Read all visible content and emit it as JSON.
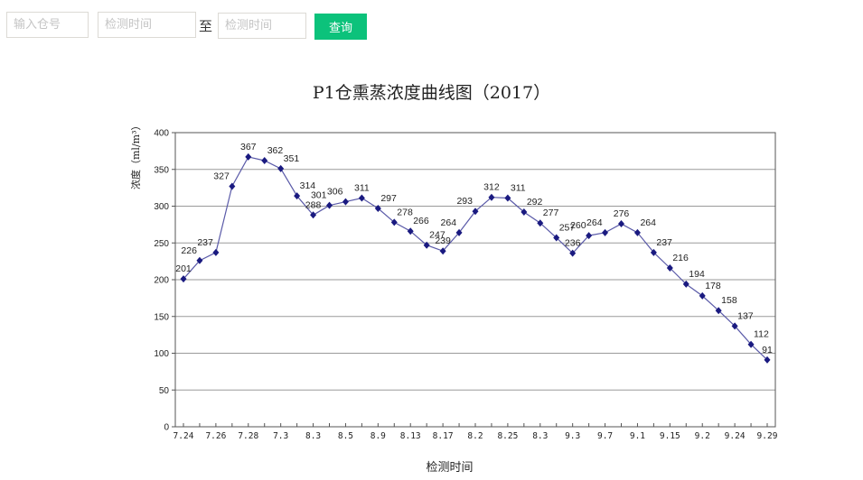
{
  "filter": {
    "warehouse_placeholder": "输入仓号",
    "start_placeholder": "检测时间",
    "separator": "至",
    "end_placeholder": "检测时间",
    "query_label": "查询",
    "accent_color": "#0cc27b"
  },
  "chart_data": {
    "type": "line",
    "title": "P1仓熏蒸浓度曲线图（2017）",
    "xlabel": "检测时间",
    "ylabel": "浓度（ml/m³）",
    "ylim": [
      0,
      400
    ],
    "yticks": [
      0,
      50,
      100,
      150,
      200,
      250,
      300,
      350,
      400
    ],
    "grid": true,
    "legend": false,
    "xtick_labels": [
      "7.24",
      "7.26",
      "7.28",
      "7.3",
      "8.3",
      "8.5",
      "8.9",
      "8.13",
      "8.17",
      "8.2",
      "8.25",
      "8.3",
      "9.3",
      "9.7",
      "9.1",
      "9.15",
      "9.2",
      "9.24",
      "9.29"
    ],
    "series": [
      {
        "name": "浓度",
        "color": "#1a1a80",
        "line_color": "#5a5aa8",
        "values": [
          201,
          226,
          237,
          327,
          367,
          362,
          351,
          314,
          288,
          301,
          306,
          311,
          297,
          278,
          266,
          247,
          239,
          264,
          293,
          312,
          311,
          292,
          277,
          257,
          236,
          260,
          264,
          276,
          264,
          237,
          216,
          194,
          178,
          158,
          137,
          112,
          91
        ]
      }
    ]
  }
}
